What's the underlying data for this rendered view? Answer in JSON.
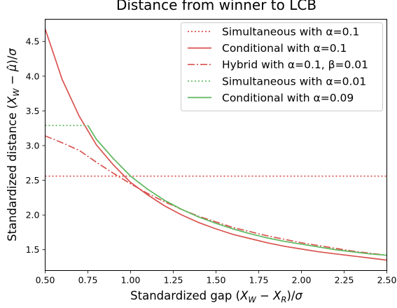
{
  "chart_data": {
    "type": "line",
    "title": "Distance from winner to LCB",
    "xlabel": "Standardized gap (X_W − X_R)/σ",
    "ylabel": "Standardized distance (X_W − μ̂)/σ",
    "xlim": [
      0.5,
      2.5
    ],
    "ylim": [
      1.2,
      4.82
    ],
    "grid": false,
    "legend_position": "top-right",
    "x_ticks": [
      "0.50",
      "0.75",
      "1.00",
      "1.25",
      "1.50",
      "1.75",
      "2.00",
      "2.25",
      "2.50"
    ],
    "y_ticks": [
      "1.5",
      "2.0",
      "2.5",
      "3.0",
      "3.5",
      "4.0",
      "4.5"
    ],
    "series": [
      {
        "name": "Simultaneous with α=0.1",
        "color": "#d9534f",
        "dash": "dotted",
        "x": [
          0.5,
          2.5
        ],
        "y": [
          2.56,
          2.56
        ]
      },
      {
        "name": "Conditional with α=0.1",
        "color": "#d9534f",
        "dash": "solid",
        "x": [
          0.5,
          0.6,
          0.7,
          0.8,
          0.9,
          1.0,
          1.1,
          1.2,
          1.3,
          1.4,
          1.5,
          1.6,
          1.7,
          1.8,
          1.9,
          2.0,
          2.1,
          2.2,
          2.3,
          2.4,
          2.5
        ],
        "y": [
          4.68,
          3.95,
          3.42,
          3.01,
          2.72,
          2.47,
          2.29,
          2.13,
          2.0,
          1.89,
          1.8,
          1.72,
          1.66,
          1.6,
          1.55,
          1.51,
          1.47,
          1.44,
          1.41,
          1.38,
          1.35
        ]
      },
      {
        "name": "Hybrid with α=0.1, β=0.01",
        "color": "#d9534f",
        "dash": "dashdot",
        "x": [
          0.5,
          0.6,
          0.7,
          0.8,
          0.9,
          1.0,
          1.1,
          1.2,
          1.3,
          1.4,
          1.5,
          1.6,
          1.7,
          1.8,
          1.9,
          2.0,
          2.1,
          2.2,
          2.3,
          2.4,
          2.5
        ],
        "y": [
          3.14,
          3.04,
          2.93,
          2.76,
          2.6,
          2.45,
          2.31,
          2.19,
          2.08,
          1.98,
          1.9,
          1.82,
          1.76,
          1.7,
          1.65,
          1.6,
          1.56,
          1.52,
          1.48,
          1.45,
          1.42
        ]
      },
      {
        "name": "Simultaneous with α=0.01",
        "color": "#5cb85c",
        "dash": "dotted",
        "x": [
          0.5,
          0.75
        ],
        "y": [
          3.29,
          3.29
        ]
      },
      {
        "name": "Conditional with α=0.09",
        "color": "#5cb85c",
        "dash": "solid",
        "x": [
          0.75,
          0.8,
          0.9,
          1.0,
          1.1,
          1.2,
          1.3,
          1.4,
          1.5,
          1.6,
          1.7,
          1.8,
          1.9,
          2.0,
          2.1,
          2.2,
          2.3,
          2.4,
          2.5
        ],
        "y": [
          3.29,
          3.09,
          2.81,
          2.56,
          2.37,
          2.21,
          2.08,
          1.97,
          1.88,
          1.8,
          1.73,
          1.67,
          1.62,
          1.58,
          1.54,
          1.5,
          1.47,
          1.44,
          1.42
        ]
      }
    ]
  }
}
